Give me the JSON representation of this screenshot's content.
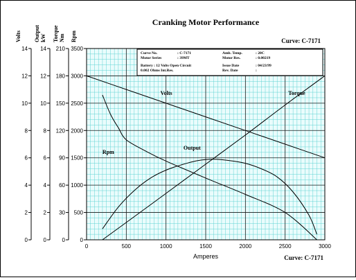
{
  "chart_data": {
    "type": "line",
    "title": "Cranking Motor Performance",
    "curve_label": "Curve: C-7171",
    "xlabel": "Amperes",
    "xlim": [
      0,
      3000
    ],
    "x_ticks": [
      "0",
      "500",
      "1000",
      "1500",
      "2000",
      "2500",
      "3000"
    ],
    "y_axes": [
      {
        "name": "Volts",
        "unit": "",
        "range": [
          0,
          14
        ],
        "ticks": [
          "0",
          "2",
          "4",
          "6",
          "8",
          "10",
          "12",
          "14"
        ]
      },
      {
        "name": "Output",
        "unit": "kW",
        "range": [
          0,
          14
        ],
        "ticks": [
          "0",
          "2",
          "4",
          "6",
          "8",
          "10",
          "12",
          "14"
        ]
      },
      {
        "name": "Torque",
        "unit": "Nm",
        "range": [
          0,
          210
        ],
        "ticks": [
          "0",
          "30",
          "60",
          "90",
          "120",
          "150",
          "180",
          "210"
        ]
      },
      {
        "name": "Rpm",
        "unit": "",
        "range": [
          0,
          3500
        ],
        "ticks": [
          "0",
          "500",
          "1000",
          "1500",
          "2000",
          "2500",
          "3000",
          "3500"
        ]
      }
    ],
    "grid": true,
    "series": [
      {
        "name": "Volts",
        "label_at": [
          930,
          10.6
        ],
        "points": [
          [
            0,
            12.0
          ],
          [
            500,
            11.0
          ],
          [
            1000,
            10.0
          ],
          [
            1500,
            9.0
          ],
          [
            2000,
            8.0
          ],
          [
            2500,
            7.0
          ],
          [
            3000,
            6.0
          ]
        ]
      },
      {
        "name": "Torque",
        "label_at": [
          2540,
          10.6
        ],
        "points": [
          [
            200,
            0
          ],
          [
            500,
            19
          ],
          [
            1000,
            51
          ],
          [
            1500,
            83
          ],
          [
            2000,
            115
          ],
          [
            2500,
            148
          ],
          [
            3000,
            180
          ]
        ]
      },
      {
        "name": "Output",
        "label_at": [
          1220,
          6.6
        ],
        "points": [
          [
            200,
            0.8
          ],
          [
            400,
            2.4
          ],
          [
            600,
            3.6
          ],
          [
            800,
            4.5
          ],
          [
            1000,
            5.1
          ],
          [
            1200,
            5.5
          ],
          [
            1400,
            5.8
          ],
          [
            1600,
            5.9
          ],
          [
            1800,
            5.8
          ],
          [
            2000,
            5.6
          ],
          [
            2200,
            5.2
          ],
          [
            2400,
            4.6
          ],
          [
            2600,
            3.5
          ],
          [
            2800,
            1.8
          ],
          [
            2900,
            0.4
          ]
        ]
      },
      {
        "name": "Rpm",
        "label_at": [
          200,
          6.3
        ],
        "points": [
          [
            200,
            2650
          ],
          [
            300,
            2300
          ],
          [
            400,
            2050
          ],
          [
            500,
            1830
          ],
          [
            750,
            1620
          ],
          [
            1000,
            1440
          ],
          [
            1500,
            1130
          ],
          [
            2000,
            830
          ],
          [
            2500,
            500
          ],
          [
            2900,
            0
          ]
        ]
      }
    ],
    "info_box": {
      "rows": [
        [
          "Curve No.",
          ": C-7171",
          "Amb. Temp.",
          ": 20C"
        ],
        [
          "Motor Series",
          ": 39MT",
          "Motor Res.",
          ": 0.00219"
        ],
        [
          "Battery : 12 Volts Open Circuit",
          "",
          "Issue Date",
          ": 04/23/99"
        ],
        [
          "0.002 Ohms Int.Res.",
          "",
          "Rev. Date",
          ":"
        ]
      ]
    }
  }
}
